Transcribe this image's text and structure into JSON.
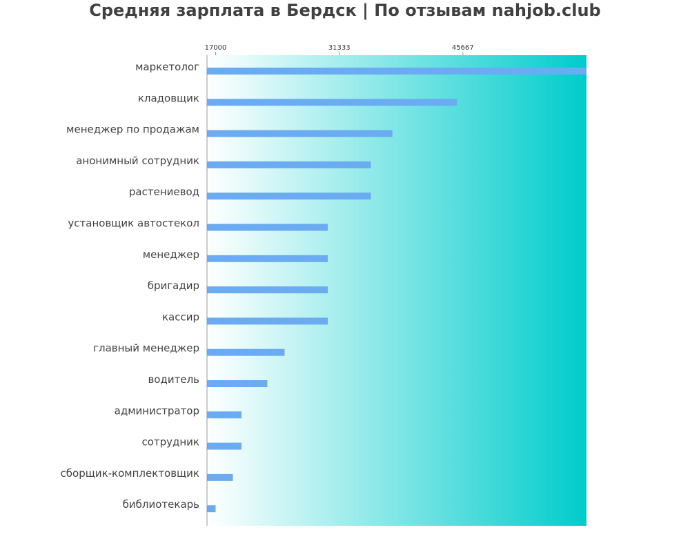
{
  "chart_data": {
    "type": "bar",
    "orientation": "horizontal",
    "title": "Средняя зарплата в Бердск | По отзывам nahjob.club",
    "xlabel": "",
    "ylabel": "",
    "xlim": [
      16000,
      60000
    ],
    "xticks": [
      17000,
      31333,
      45667
    ],
    "xtick_labels": [
      "17000",
      "31333",
      "45667"
    ],
    "tick_position": "top",
    "grid": false,
    "legend": "none",
    "categories": [
      "маркетолог",
      "кладовщик",
      "менеджер по продажам",
      "анонимный сотрудник",
      "растениевод",
      "установщик автостекол",
      "менеджер",
      "бригадир",
      "кассир",
      "главный менеджер",
      "водитель",
      "администратор",
      "сотрудник",
      "сборщик-комплектовщик",
      "библиотекарь"
    ],
    "values": [
      60000,
      45000,
      37500,
      35000,
      35000,
      30000,
      30000,
      30000,
      30000,
      25000,
      23000,
      20000,
      20000,
      19000,
      17000
    ],
    "colors": {
      "bar": "#6aabf2",
      "background_start": "#ffffff",
      "background_end": "#00cccc",
      "axis": "#999999",
      "text": "#404040"
    }
  }
}
